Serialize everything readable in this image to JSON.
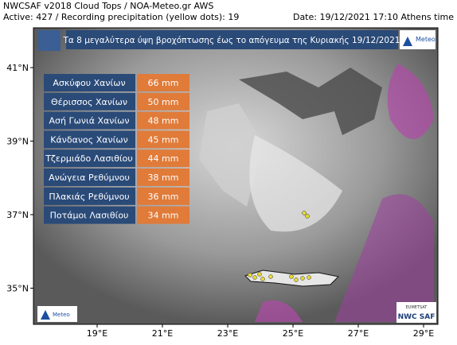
{
  "header": {
    "line1": "NWCSAF v2018 Cloud Tops / NOA-Meteo.gr AWS",
    "line2": "Active: 427 / Recording precipitation (yellow dots): 19",
    "date": "Date: 19/12/2021 17:10 Athens time"
  },
  "banner": {
    "title": "Τα 8 μεγαλύτερα ύψη βροχόπτωσης έως το απόγευμα της Κυριακής 19/12/2021"
  },
  "table": {
    "rows": [
      [
        "Ασκύφου Χανίων",
        "66 mm"
      ],
      [
        "Θέρισσος Χανίων",
        "50 mm"
      ],
      [
        "Ασή Γωνιά Χανίων",
        "48 mm"
      ],
      [
        "Κάνδανος Χανίων",
        "45 mm"
      ],
      [
        "Τζερμιάδο Λασιθίου",
        "44 mm"
      ],
      [
        "Ανώγεια Ρεθύμνου",
        "38 mm"
      ],
      [
        "Πλακιάς Ρεθύμνου",
        "36 mm"
      ],
      [
        "Ποτάμοι Λασιθίου",
        "34 mm"
      ]
    ]
  },
  "lat_labels": [
    "41°N",
    "39°N",
    "37°N",
    "35°N"
  ],
  "lon_labels": [
    "19°E",
    "21°E",
    "23°E",
    "25°E",
    "27°E",
    "29°E"
  ],
  "logos": {
    "meteo_top": "Meteo",
    "meteo_bottom": "Meteo",
    "eumetsat": "EUMETSAT",
    "nwcsaf": "NWC SAF"
  }
}
